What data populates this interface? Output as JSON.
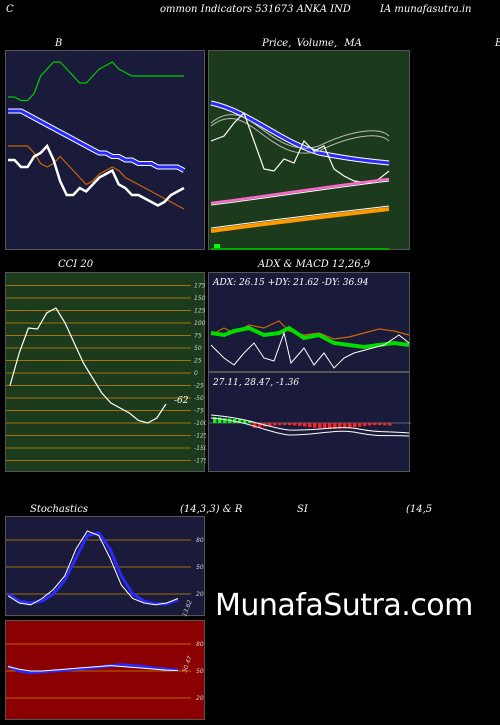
{
  "header": {
    "left_c": "C",
    "title": "ommon  Indicators 531673 ANKA IND",
    "site": "IA munafasutra.in"
  },
  "panels": {
    "b_title": "B",
    "price_title": "Price,",
    "price_title2": "Volume,",
    "price_title3": "MA",
    "right_b": "B",
    "cci_title": "CCI 20",
    "cci_value": "-62",
    "adx_title": "ADX  & MACD 12,26,9",
    "adx_text": "ADX: 26.15  +DY: 21.62  -DY: 36.94",
    "macd_text": "27.11,  28.47,  -1.36",
    "stoch_title": "Stochastics",
    "stoch_params": "(14,3,3) & R",
    "si_title": "SI",
    "si_params": "(14,5",
    "stoch_value": "13.62",
    "rsi_value": "50.47"
  },
  "watermark": "MunafaSutra.com",
  "colors": {
    "navy": "#1a1a3a",
    "green_panel": "#1c3a1c",
    "red_panel": "#8b0000",
    "orange": "#cc6600",
    "blue": "#2a2aff"
  },
  "chart_data": [
    {
      "type": "line",
      "name": "bollinger",
      "series": [
        {
          "values": [
            74,
            74,
            73,
            73,
            75,
            80,
            82,
            84,
            84,
            82,
            80,
            78,
            78,
            80,
            82,
            83,
            84,
            82,
            81,
            80,
            80,
            80,
            80,
            80,
            80,
            80,
            80,
            80
          ]
        },
        {
          "values": [
            70,
            70,
            70,
            69,
            68,
            67,
            66,
            65,
            64,
            63,
            62,
            61,
            60,
            59,
            58,
            58,
            57,
            57,
            56,
            56,
            55,
            55,
            55,
            54,
            54,
            54,
            54,
            53
          ]
        },
        {
          "values": [
            60,
            60,
            60,
            60,
            58,
            55,
            54,
            55,
            57,
            55,
            53,
            51,
            49,
            50,
            52,
            53,
            54,
            53,
            51,
            50,
            49,
            48,
            47,
            46,
            45,
            44,
            43,
            42
          ]
        },
        {
          "values": [
            56,
            56,
            54,
            54,
            57,
            58,
            60,
            56,
            50,
            46,
            46,
            48,
            47,
            49,
            51,
            52,
            53,
            49,
            48,
            46,
            46,
            45,
            44,
            43,
            44,
            46,
            47,
            48
          ]
        }
      ]
    },
    {
      "type": "line",
      "name": "cci",
      "yticks": [
        175,
        150,
        125,
        100,
        75,
        50,
        25,
        0,
        -25,
        -50,
        -75,
        -100,
        -125,
        -150,
        -175
      ],
      "values": [
        -25,
        40,
        90,
        88,
        120,
        130,
        100,
        60,
        20,
        -10,
        -40,
        -60,
        -70,
        -80,
        -95,
        -100,
        -90,
        -62
      ]
    },
    {
      "type": "line",
      "name": "stochastics",
      "yticks": [
        80,
        50,
        20
      ],
      "series": [
        {
          "values": [
            18,
            10,
            8,
            15,
            25,
            40,
            70,
            90,
            85,
            60,
            30,
            15,
            10,
            8,
            10,
            15
          ]
        },
        {
          "values": [
            20,
            12,
            10,
            12,
            20,
            35,
            60,
            85,
            88,
            70,
            40,
            20,
            12,
            9,
            9,
            13.62
          ]
        }
      ]
    },
    {
      "type": "line",
      "name": "rsi",
      "yticks": [
        80,
        50,
        20
      ],
      "series": [
        {
          "values": [
            55,
            52,
            50,
            50,
            51,
            52,
            53,
            54,
            55,
            56,
            55,
            54,
            53,
            52,
            51,
            50.47
          ]
        },
        {
          "values": [
            55,
            50,
            48,
            49,
            50,
            51,
            52,
            53,
            54,
            56,
            57,
            56,
            55,
            53,
            52,
            51
          ]
        }
      ]
    }
  ]
}
